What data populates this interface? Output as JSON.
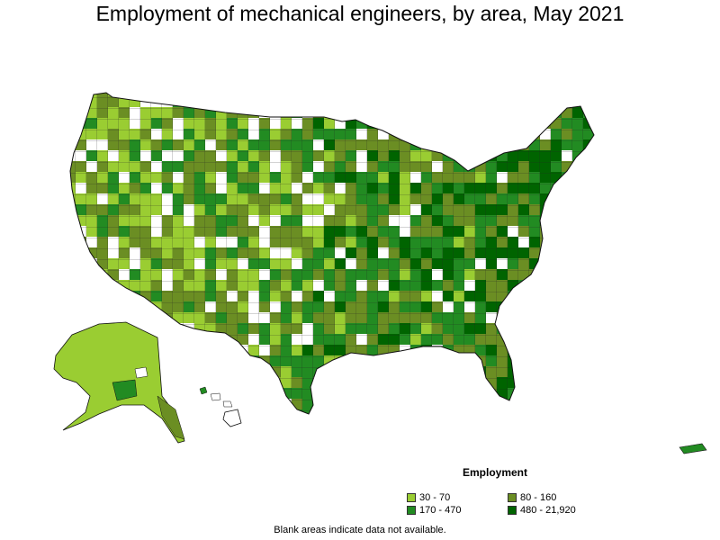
{
  "title": "Employment of mechanical engineers, by area, May 2021",
  "legend": {
    "title": "Employment",
    "items": [
      {
        "label": "30 - 70",
        "color": "#9acd32"
      },
      {
        "label": "80 - 160",
        "color": "#6b8e23"
      },
      {
        "label": "170 - 470",
        "color": "#228b22"
      },
      {
        "label": "480 - 21,920",
        "color": "#006400"
      }
    ]
  },
  "note": "Blank areas indicate data not available.",
  "colors": {
    "no_data": "#ffffff",
    "border": "#222222"
  }
}
